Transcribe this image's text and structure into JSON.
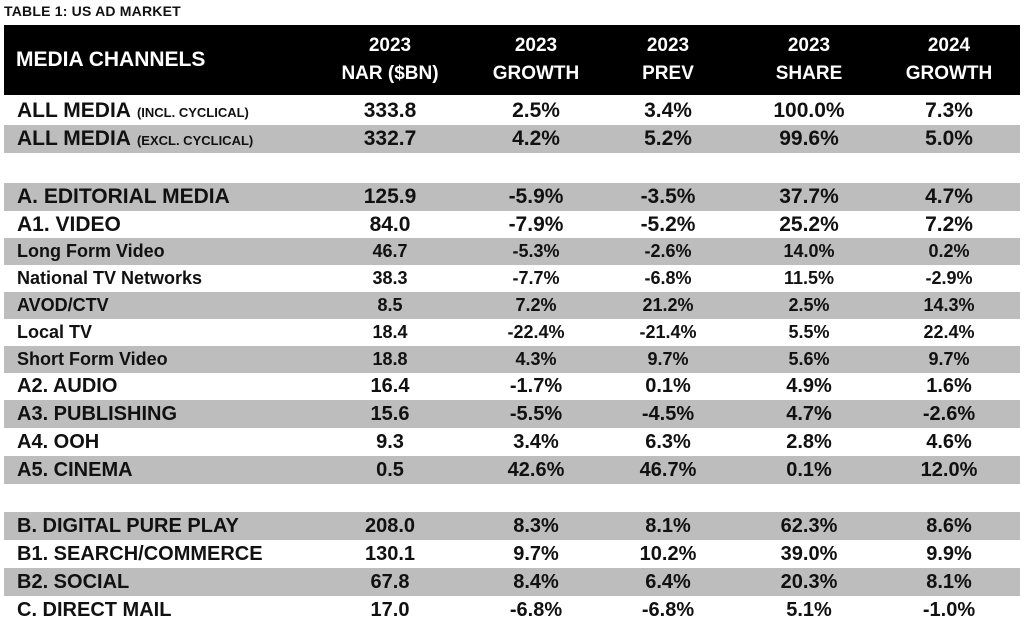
{
  "caption": "TABLE 1: US AD MARKET",
  "chart_data": {
    "type": "table",
    "title": "TABLE 1: US AD MARKET",
    "columns": [
      {
        "line1": "MEDIA CHANNELS",
        "line2": ""
      },
      {
        "line1": "2023",
        "line2": "NAR ($BN)"
      },
      {
        "line1": "2023",
        "line2": "GROWTH"
      },
      {
        "line1": "2023",
        "line2": "PREV"
      },
      {
        "line1": "2023",
        "line2": "SHARE"
      },
      {
        "line1": "2024",
        "line2": "GROWTH"
      }
    ],
    "rows": [
      {
        "name": "ALL MEDIA",
        "note": "(INCL. CYCLICAL)",
        "values": [
          "333.8",
          "2.5%",
          "3.4%",
          "100.0%",
          "7.3%"
        ]
      },
      {
        "name": "ALL MEDIA",
        "note": "(EXCL. CYCLICAL)",
        "values": [
          "332.7",
          "4.2%",
          "5.2%",
          "99.6%",
          "5.0%"
        ]
      },
      {
        "name": "A. EDITORIAL MEDIA",
        "values": [
          "125.9",
          "-5.9%",
          "-3.5%",
          "37.7%",
          "4.7%"
        ]
      },
      {
        "name": "A1. VIDEO",
        "values": [
          "84.0",
          "-7.9%",
          "-5.2%",
          "25.2%",
          "7.2%"
        ]
      },
      {
        "name": "Long Form Video",
        "values": [
          "46.7",
          "-5.3%",
          "-2.6%",
          "14.0%",
          "0.2%"
        ]
      },
      {
        "name": "National TV Networks",
        "values": [
          "38.3",
          "-7.7%",
          "-6.8%",
          "11.5%",
          "-2.9%"
        ]
      },
      {
        "name": "AVOD/CTV",
        "values": [
          "8.5",
          "7.2%",
          "21.2%",
          "2.5%",
          "14.3%"
        ]
      },
      {
        "name": "Local TV",
        "values": [
          "18.4",
          "-22.4%",
          "-21.4%",
          "5.5%",
          "22.4%"
        ]
      },
      {
        "name": "Short Form Video",
        "values": [
          "18.8",
          "4.3%",
          "9.7%",
          "5.6%",
          "9.7%"
        ]
      },
      {
        "name": "A2. AUDIO",
        "values": [
          "16.4",
          "-1.7%",
          "0.1%",
          "4.9%",
          "1.6%"
        ]
      },
      {
        "name": "A3. PUBLISHING",
        "values": [
          "15.6",
          "-5.5%",
          "-4.5%",
          "4.7%",
          "-2.6%"
        ]
      },
      {
        "name": "A4. OOH",
        "values": [
          "9.3",
          "3.4%",
          "6.3%",
          "2.8%",
          "4.6%"
        ]
      },
      {
        "name": "A5. CINEMA",
        "values": [
          "0.5",
          "42.6%",
          "46.7%",
          "0.1%",
          "12.0%"
        ]
      },
      {
        "name": "B. DIGITAL PURE PLAY",
        "values": [
          "208.0",
          "8.3%",
          "8.1%",
          "62.3%",
          "8.6%"
        ]
      },
      {
        "name": "B1. SEARCH/COMMERCE",
        "values": [
          "130.1",
          "9.7%",
          "10.2%",
          "39.0%",
          "9.9%"
        ]
      },
      {
        "name": "B2. SOCIAL",
        "values": [
          "67.8",
          "8.4%",
          "6.4%",
          "20.3%",
          "8.1%"
        ]
      },
      {
        "name": "C. DIRECT MAIL",
        "values": [
          "17.0",
          "-6.8%",
          "-6.8%",
          "5.1%",
          "-1.0%"
        ]
      }
    ]
  },
  "colors": {
    "header_bg": "#000000",
    "header_text": "#ffffff",
    "shade": "#bdbdbd"
  }
}
